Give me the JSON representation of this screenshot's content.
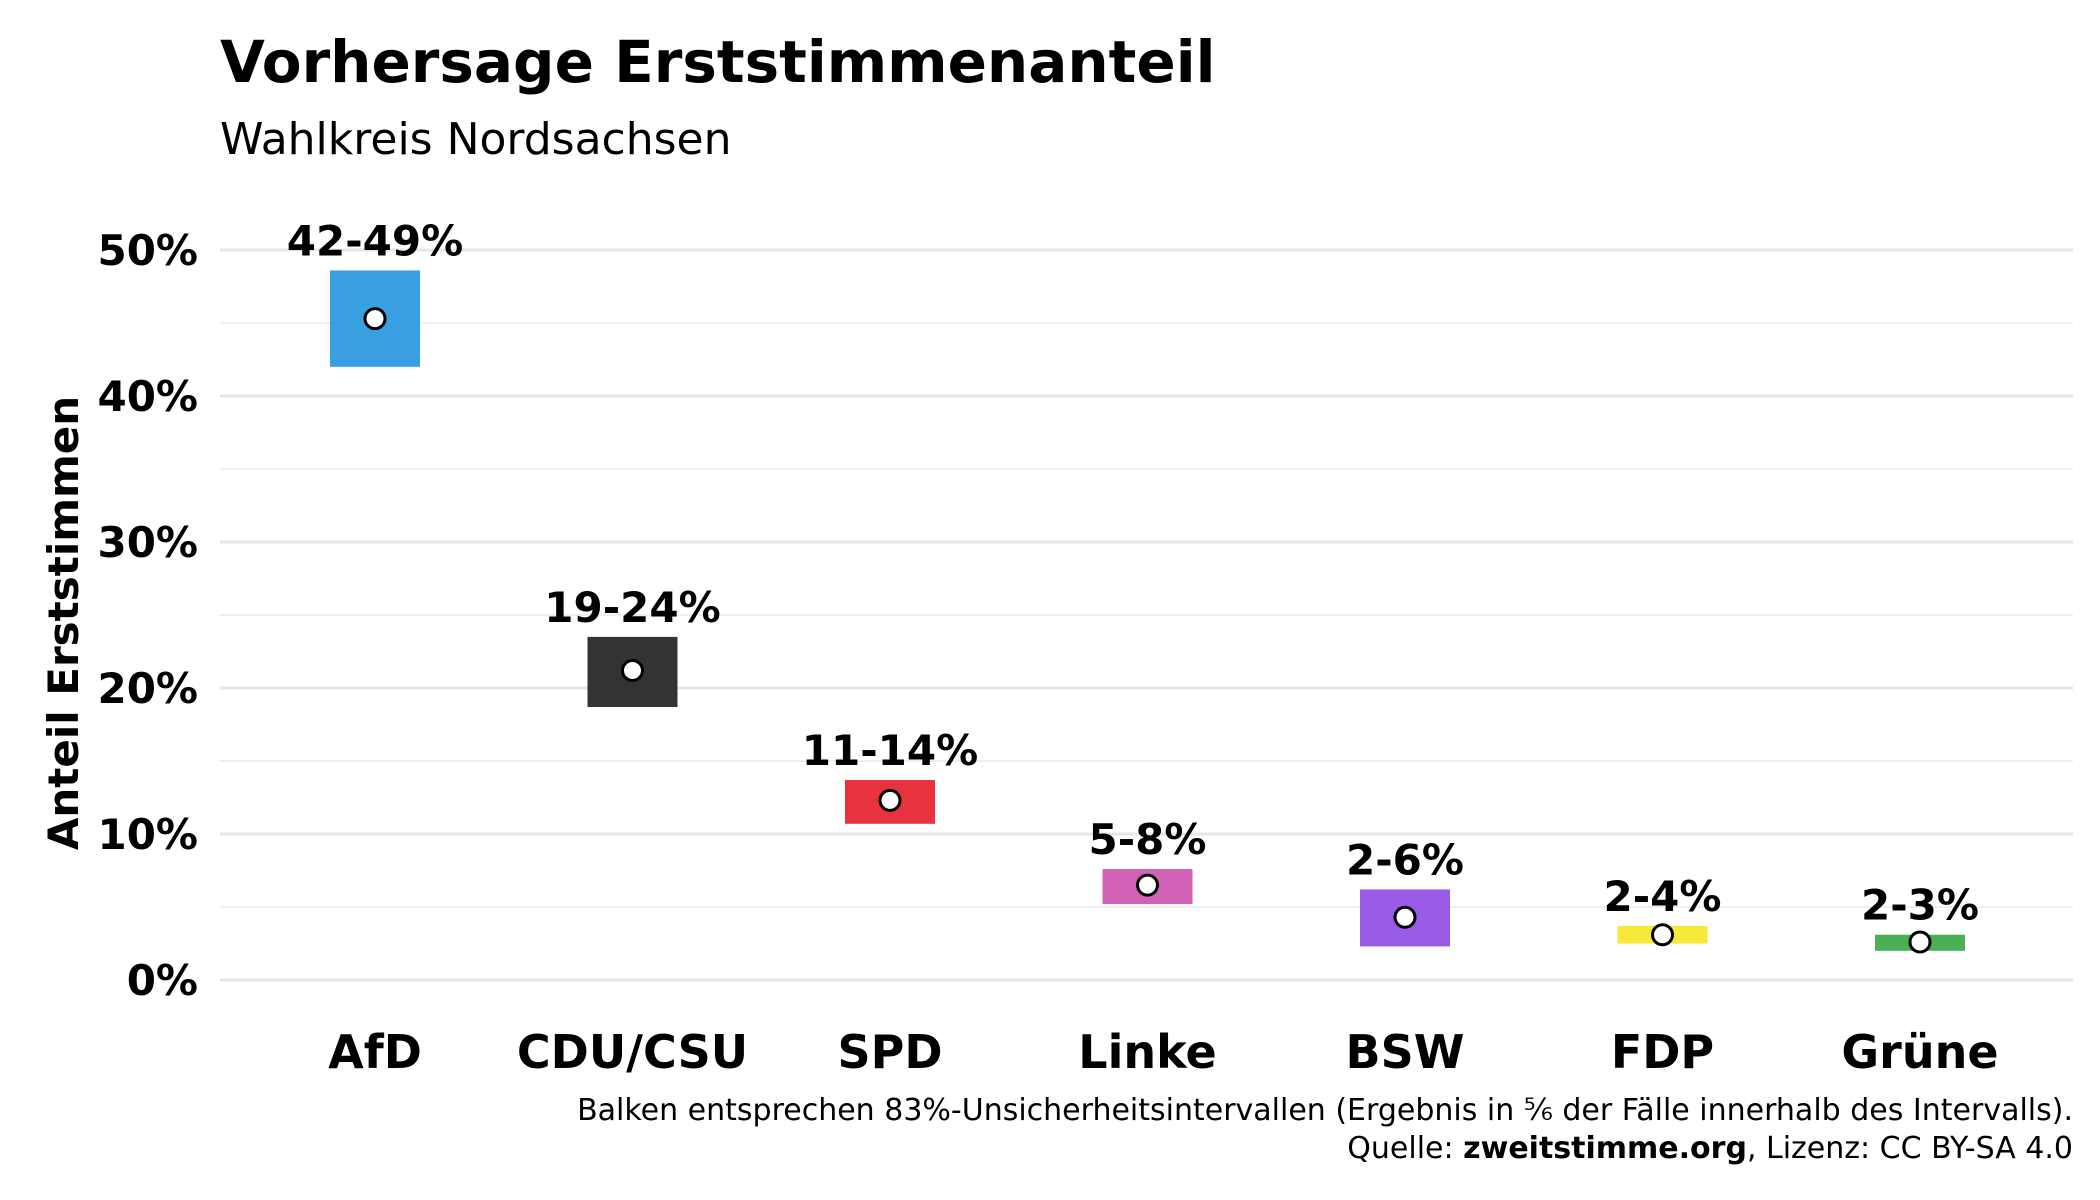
{
  "header": {
    "title": "Vorhersage Erststimmenanteil",
    "subtitle": "Wahlkreis Nordsachsen"
  },
  "chart_data": {
    "type": "bar",
    "title": "Vorhersage Erststimmenanteil",
    "subtitle": "Wahlkreis Nordsachsen",
    "xlabel": "",
    "ylabel": "Anteil Erststimmen",
    "ylim": [
      0,
      52
    ],
    "yticks": [
      0,
      10,
      20,
      30,
      40,
      50
    ],
    "ytick_labels": [
      "0%",
      "10%",
      "20%",
      "30%",
      "40%",
      "50%"
    ],
    "grid": true,
    "categories": [
      "AfD",
      "CDU/CSU",
      "SPD",
      "Linke",
      "BSW",
      "FDP",
      "Grüne"
    ],
    "intervals": [
      {
        "party": "AfD",
        "low": 42.0,
        "high": 48.6,
        "point": 45.3,
        "label": "42-49%",
        "color": "#3a9fe0"
      },
      {
        "party": "CDU/CSU",
        "low": 18.7,
        "high": 23.5,
        "point": 21.2,
        "label": "19-24%",
        "color": "#333333"
      },
      {
        "party": "SPD",
        "low": 10.7,
        "high": 13.7,
        "point": 12.3,
        "label": "11-14%",
        "color": "#e8323e"
      },
      {
        "party": "Linke",
        "low": 5.2,
        "high": 7.6,
        "point": 6.5,
        "label": "5-8%",
        "color": "#d162b6"
      },
      {
        "party": "BSW",
        "low": 2.3,
        "high": 6.2,
        "point": 4.3,
        "label": "2-6%",
        "color": "#9a5ce6"
      },
      {
        "party": "FDP",
        "low": 2.5,
        "high": 3.7,
        "point": 3.1,
        "label": "2-4%",
        "color": "#f8e83a"
      },
      {
        "party": "Grüne",
        "low": 2.0,
        "high": 3.1,
        "point": 2.6,
        "label": "2-3%",
        "color": "#4aaf55"
      }
    ]
  },
  "caption": {
    "line1": "Balken entsprechen 83%-Unsicherheitsintervallen (Ergebnis in ⅚ der Fälle innerhalb des Intervalls).",
    "source_prefix": "Quelle: ",
    "source_name": "zweitstimme.org",
    "license": ", Lizenz: CC BY-SA 4.0"
  }
}
